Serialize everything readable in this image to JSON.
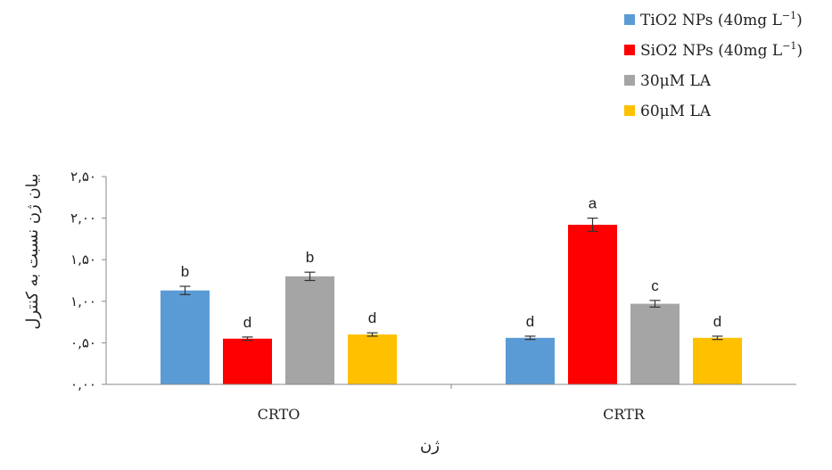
{
  "chart_data": {
    "type": "bar",
    "categories": [
      "CRTO",
      "CRTR"
    ],
    "series": [
      {
        "name": "TiO2 NPs (40mg L",
        "superscript": "−1",
        "name_suffix": ")",
        "color": "#5b9bd5",
        "values": [
          1.13,
          0.56
        ],
        "errors": [
          0.05,
          0.02
        ],
        "letters": [
          "b",
          "d"
        ]
      },
      {
        "name": "SiO2 NPs (40mg L",
        "superscript": "−1",
        "name_suffix": ")",
        "color": "#ff0000",
        "values": [
          0.55,
          1.92
        ],
        "errors": [
          0.02,
          0.08
        ],
        "letters": [
          "d",
          "a"
        ]
      },
      {
        "name": "30μM LA",
        "color": "#a5a5a5",
        "values": [
          1.3,
          0.97
        ],
        "errors": [
          0.05,
          0.04
        ],
        "letters": [
          "b",
          "c"
        ]
      },
      {
        "name": "60μM LA",
        "color": "#ffc000",
        "values": [
          0.6,
          0.56
        ],
        "errors": [
          0.02,
          0.02
        ],
        "letters": [
          "d",
          "d"
        ]
      }
    ],
    "y_ticks": [
      "۰,۰۰",
      "۰,۵۰",
      "۱,۰۰",
      "۱,۵۰",
      "۲,۰۰",
      "۲,۵۰"
    ],
    "ylim": [
      0,
      2.5
    ],
    "xlabel": "ژن",
    "ylabel": "بیان ژن نسبت به کنترل",
    "legend_position": "top-right",
    "grid": false
  }
}
